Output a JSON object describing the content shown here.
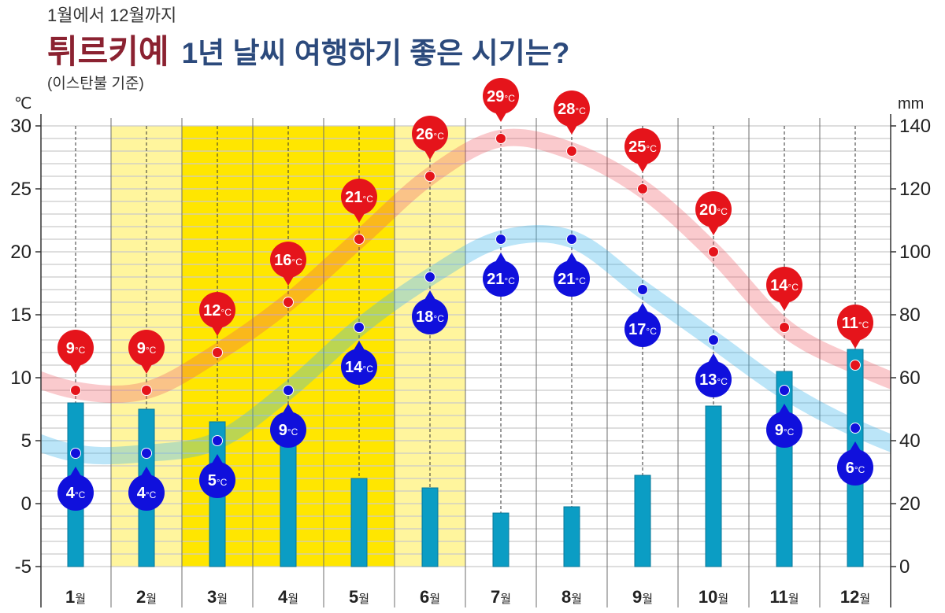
{
  "header": {
    "subtitle": "1월에서 12월까지",
    "title_highlight": "튀르키예",
    "title_rest": "1년 날씨 여행하기 좋은 시기는?",
    "note": "(이스탄불 기준)"
  },
  "colors": {
    "title_highlight": "#8b2231",
    "title_rest": "#2c4a7c"
  },
  "chart_data": {
    "type": "line",
    "categories": [
      "1월",
      "2월",
      "3월",
      "4월",
      "5월",
      "6월",
      "7월",
      "8월",
      "9월",
      "10월",
      "11월",
      "12월"
    ],
    "value_unit": "°C",
    "y_left": {
      "label": "℃",
      "ylim": [
        -5,
        30
      ],
      "ticks": [
        30,
        25,
        20,
        15,
        10,
        5,
        0,
        -5
      ]
    },
    "y_right": {
      "label": "mm",
      "ylim": [
        0,
        140
      ],
      "ticks": [
        140,
        120,
        100,
        80,
        60,
        40,
        20,
        0
      ]
    },
    "series": [
      {
        "type": "line",
        "values": [
          9,
          9,
          12,
          16,
          21,
          26,
          29,
          28,
          25,
          20,
          14,
          11
        ],
        "color": "#e5141b",
        "trend_color": "#f0505a"
      },
      {
        "type": "line",
        "values": [
          4,
          4,
          5,
          9,
          14,
          18,
          21,
          21,
          17,
          13,
          9,
          6
        ],
        "color": "#1010dc",
        "trend_color": "#3cb4eb"
      },
      {
        "type": "bar",
        "values": [
          52,
          50,
          46,
          42,
          28,
          25,
          17,
          19,
          29,
          51,
          62,
          69
        ],
        "color": "#0b9dc4"
      }
    ],
    "highlight": {
      "levels": [
        0,
        1,
        2,
        2,
        2,
        1,
        0,
        0,
        0,
        0,
        0,
        0
      ],
      "colors": {
        "1": "#fff59d",
        "2": "#ffe600"
      }
    },
    "grid": true
  }
}
